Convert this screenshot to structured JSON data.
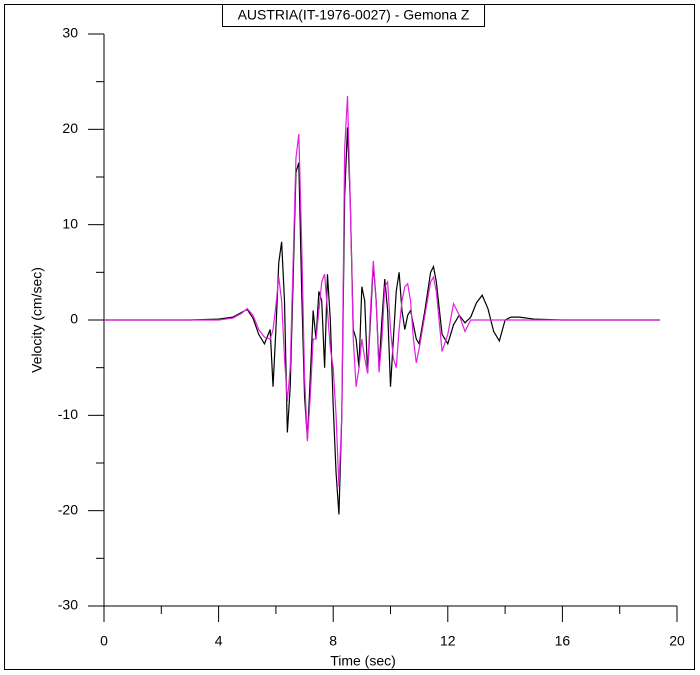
{
  "chart_data": {
    "type": "line",
    "title": "AUSTRIA(IT-1976-0027) - Gemona Z",
    "x_label": "Time (sec)",
    "y_label": "Velocity (cm/sec)",
    "x": [
      0,
      2,
      3,
      4,
      4.5,
      4.8,
      5.0,
      5.2,
      5.4,
      5.6,
      5.8,
      5.9,
      6.0,
      6.1,
      6.2,
      6.3,
      6.4,
      6.5,
      6.6,
      6.7,
      6.8,
      6.9,
      7.0,
      7.1,
      7.2,
      7.3,
      7.4,
      7.5,
      7.6,
      7.7,
      7.8,
      7.9,
      8.0,
      8.1,
      8.2,
      8.3,
      8.4,
      8.5,
      8.6,
      8.7,
      8.8,
      8.9,
      9.0,
      9.1,
      9.2,
      9.3,
      9.4,
      9.5,
      9.6,
      9.7,
      9.8,
      9.9,
      10.0,
      10.1,
      10.2,
      10.3,
      10.4,
      10.5,
      10.6,
      10.7,
      10.8,
      10.9,
      11.0,
      11.2,
      11.4,
      11.5,
      11.6,
      11.8,
      12.0,
      12.2,
      12.4,
      12.6,
      12.8,
      13.0,
      13.2,
      13.4,
      13.6,
      13.8,
      14.0,
      14.2,
      14.5,
      15,
      16,
      17,
      18,
      19.4
    ],
    "series": [
      {
        "color": "#000000",
        "values": [
          0,
          0,
          0,
          0.1,
          0.3,
          0.8,
          1.1,
          0.2,
          -1.5,
          -2.5,
          -1,
          -7,
          -1,
          6,
          8.2,
          2,
          -11.8,
          -7,
          4,
          15.5,
          16.5,
          3,
          -8,
          -12.5,
          -6,
          1,
          -2,
          3,
          2,
          -5,
          4.8,
          0,
          -9,
          -16,
          -20.4,
          -10,
          13,
          20.2,
          12,
          -1,
          -2,
          -5,
          3.5,
          2,
          -5.6,
          0,
          5.9,
          2,
          -5,
          0,
          4.3,
          1,
          -7,
          -2,
          3,
          5,
          1,
          -1,
          0.5,
          1,
          -0.5,
          -2,
          -2.5,
          1,
          5,
          5.6,
          4,
          -1.5,
          -2.5,
          -0.5,
          0.5,
          -0.3,
          0.3,
          1.8,
          2.6,
          1.2,
          -1.2,
          -2.2,
          0,
          0.3,
          0.3,
          0.1,
          0,
          0,
          0,
          0
        ]
      },
      {
        "color": "#e020e0",
        "values": [
          0,
          0,
          0,
          0,
          0.2,
          0.7,
          1.2,
          0.5,
          -1,
          -1.8,
          -2,
          -1,
          1.5,
          4.5,
          2,
          -4,
          -8.5,
          -5,
          6,
          17,
          19.5,
          8,
          -6,
          -12.7,
          -8,
          -2,
          -2,
          1,
          4,
          4.8,
          1,
          -3,
          -5,
          -10,
          -17.5,
          -10,
          18,
          23.5,
          12,
          -2,
          -7,
          -5,
          -2,
          -4,
          -5.6,
          1,
          6.2,
          2,
          -5.5,
          -2,
          3.5,
          4,
          -1,
          -4,
          -5,
          -1,
          2,
          3.5,
          3.8,
          2,
          -2,
          -4.5,
          -3,
          0.5,
          4,
          4.5,
          3,
          -3.3,
          -1.5,
          1.7,
          0.5,
          -1.2,
          0,
          0,
          0,
          0,
          0,
          0,
          0,
          0,
          0,
          0,
          0,
          0,
          0,
          0
        ]
      }
    ],
    "xlim": [
      0,
      20
    ],
    "ylim": [
      -30,
      30
    ],
    "xticks": [
      0,
      4,
      8,
      12,
      16,
      20
    ],
    "yticks": [
      -30,
      -20,
      -10,
      0,
      10,
      20,
      30
    ],
    "xticks_minor": [
      2,
      6,
      10,
      14,
      18
    ],
    "yticks_minor": [
      -25,
      -15,
      -5,
      5,
      15,
      25
    ],
    "grid": false
  }
}
